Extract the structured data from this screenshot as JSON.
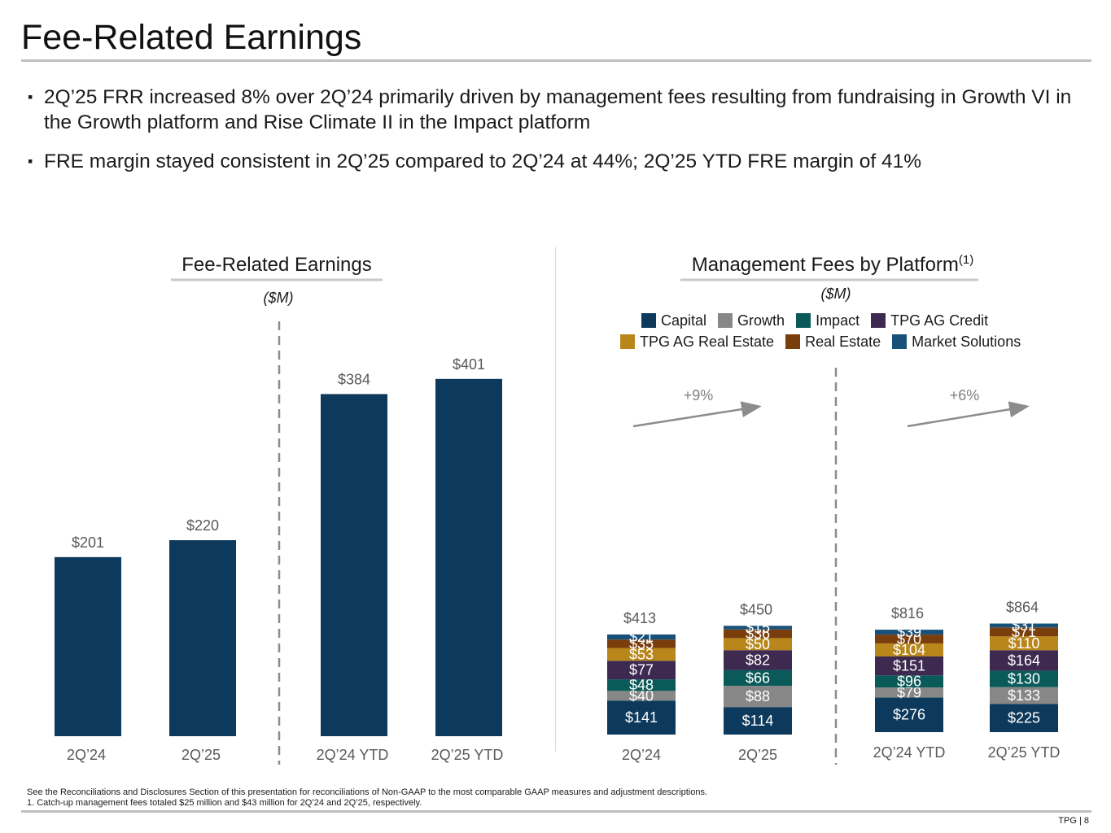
{
  "page": {
    "title": "Fee-Related Earnings",
    "bullets": [
      "2Q’25 FRR increased 8% over 2Q’24 primarily driven by management fees resulting from fundraising in Growth VI in the Growth platform and Rise Climate II in the Impact platform",
      "FRE margin stayed consistent in 2Q’25 compared to 2Q’24 at 44%; 2Q’25 YTD FRE margin of 41%"
    ],
    "bullet_marker": "▪",
    "footnotes": [
      "See the Reconciliations and Disclosures Section of this presentation for reconciliations of Non-GAAP to the most comparable GAAP measures and adjustment descriptions.",
      "1. Catch-up management fees totaled $25 million and $43 million for 2Q’24 and 2Q’25, respectively."
    ],
    "page_number": "TPG | 8"
  },
  "chart_data": [
    {
      "type": "bar",
      "title": "Fee-Related Earnings",
      "subtitle": "($M)",
      "categories": [
        "2Q’24",
        "2Q’25",
        "2Q’24 YTD",
        "2Q’25 YTD"
      ],
      "values": [
        201,
        220,
        384,
        401
      ],
      "value_labels": [
        "$201",
        "$220",
        "$384",
        "$401"
      ],
      "color": "#0d3a5c",
      "ylim": [
        0,
        420
      ],
      "divider_after_index": 1
    },
    {
      "type": "bar",
      "stacked": true,
      "title": "Management Fees by Platform",
      "title_superscript": "(1)",
      "subtitle": "($M)",
      "divider_after_index": 1,
      "categories": [
        "2Q’24",
        "2Q’25",
        "2Q’24 YTD",
        "2Q’25 YTD"
      ],
      "totals": [
        413,
        450,
        816,
        864
      ],
      "total_labels": [
        "$413",
        "$450",
        "$816",
        "$864"
      ],
      "growth_annotations": [
        {
          "from": 0,
          "to": 1,
          "label": "+9%"
        },
        {
          "from": 2,
          "to": 3,
          "label": "+6%"
        }
      ],
      "series": [
        {
          "name": "Capital",
          "color": "#0d3a5c",
          "label_color": "#ffffff",
          "values": [
            141,
            114,
            276,
            225
          ]
        },
        {
          "name": "Growth",
          "color": "#878787",
          "label_color": "#ffffff",
          "values": [
            40,
            88,
            79,
            133
          ]
        },
        {
          "name": "Impact",
          "color": "#0b5a5a",
          "label_color": "#ffffff",
          "values": [
            48,
            66,
            96,
            130
          ]
        },
        {
          "name": "TPG AG Credit",
          "color": "#3e2a50",
          "label_color": "#ffffff",
          "values": [
            77,
            82,
            151,
            164
          ]
        },
        {
          "name": "TPG AG Real Estate",
          "color": "#b8861b",
          "label_color": "#ffffff",
          "values": [
            53,
            50,
            104,
            110
          ]
        },
        {
          "name": "Real Estate",
          "color": "#7a3d0c",
          "label_color": "#ffffff",
          "values": [
            35,
            36,
            70,
            71
          ]
        },
        {
          "name": "Market Solutions",
          "color": "#17517a",
          "label_color": "#ffffff",
          "values": [
            21,
            15,
            39,
            31
          ]
        }
      ],
      "legend_rows": [
        [
          "Capital",
          "Growth",
          "Impact",
          "TPG AG Credit"
        ],
        [
          "TPG AG Real Estate",
          "Real Estate",
          "Market Solutions"
        ]
      ]
    }
  ]
}
